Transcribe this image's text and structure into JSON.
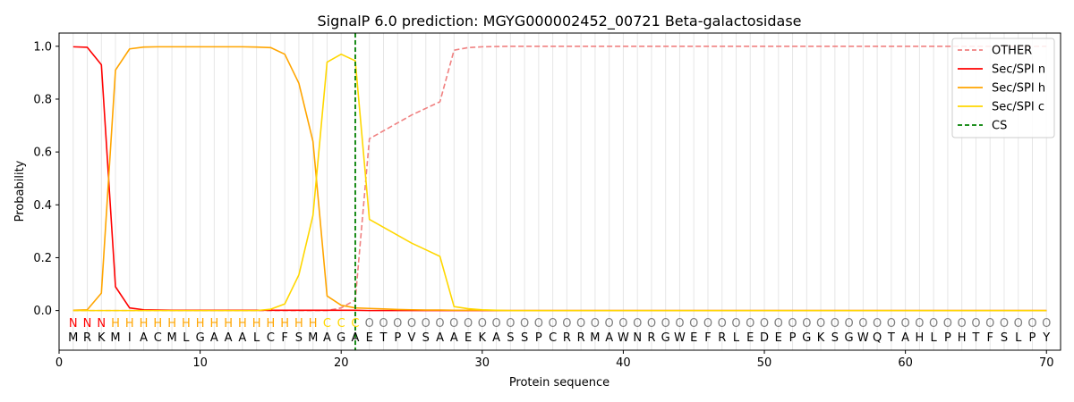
{
  "chart_data": {
    "type": "line",
    "title": "SignalP 6.0 prediction: MGYG000002452_00721 Beta-galactosidase",
    "xlabel": "Protein sequence",
    "ylabel": "Probability",
    "xlim": [
      0,
      71
    ],
    "ylim": [
      -0.15,
      1.05
    ],
    "x_ticks": [
      0,
      10,
      20,
      30,
      40,
      50,
      60,
      70
    ],
    "y_ticks": [
      0.0,
      0.2,
      0.4,
      0.6,
      0.8,
      1.0
    ],
    "grid": "vertical lines at each residue",
    "legend_position": "top-right",
    "sequence": [
      "M",
      "R",
      "K",
      "M",
      "I",
      "A",
      "C",
      "M",
      "L",
      "G",
      "A",
      "A",
      "A",
      "L",
      "C",
      "F",
      "S",
      "M",
      "A",
      "G",
      "A",
      "E",
      "T",
      "P",
      "V",
      "S",
      "A",
      "A",
      "E",
      "K",
      "A",
      "S",
      "S",
      "P",
      "C",
      "R",
      "R",
      "M",
      "A",
      "W",
      "N",
      "R",
      "G",
      "W",
      "E",
      "F",
      "R",
      "L",
      "E",
      "D",
      "E",
      "P",
      "G",
      "K",
      "S",
      "G",
      "W",
      "Q",
      "T",
      "A",
      "H",
      "L",
      "P",
      "H",
      "T",
      "F",
      "S",
      "L",
      "P",
      "Y"
    ],
    "region_labels": [
      "N",
      "N",
      "N",
      "H",
      "H",
      "H",
      "H",
      "H",
      "H",
      "H",
      "H",
      "H",
      "H",
      "H",
      "H",
      "H",
      "H",
      "H",
      "C",
      "C",
      "C",
      "O",
      "O",
      "O",
      "O",
      "O",
      "O",
      "O",
      "O",
      "O",
      "O",
      "O",
      "O",
      "O",
      "O",
      "O",
      "O",
      "O",
      "O",
      "O",
      "O",
      "O",
      "O",
      "O",
      "O",
      "O",
      "O",
      "O",
      "O",
      "O",
      "O",
      "O",
      "O",
      "O",
      "O",
      "O",
      "O",
      "O",
      "O",
      "O",
      "O",
      "O",
      "O",
      "O",
      "O",
      "O",
      "O",
      "O",
      "O",
      "O"
    ],
    "region_colors": {
      "N": "#ff0000",
      "H": "#ffa500",
      "C": "#ffd700",
      "O": "#808080"
    },
    "cleavage_site": 21,
    "series": [
      {
        "name": "OTHER",
        "color": "#f08080",
        "dash": "dashed",
        "values": [
          0,
          0,
          0,
          0,
          0,
          0,
          0,
          0,
          0,
          0,
          0,
          0,
          0,
          0,
          0,
          0,
          0,
          0,
          0,
          0.01,
          0.04,
          0.65,
          0.68,
          0.71,
          0.74,
          0.765,
          0.79,
          0.985,
          0.995,
          0.998,
          0.999,
          1,
          1,
          1,
          1,
          1,
          1,
          1,
          1,
          1,
          1,
          1,
          1,
          1,
          1,
          1,
          1,
          1,
          1,
          1,
          1,
          1,
          1,
          1,
          1,
          1,
          1,
          1,
          1,
          1,
          1,
          1,
          1,
          1,
          1,
          1,
          1,
          1,
          1,
          1
        ]
      },
      {
        "name": "Sec/SPI n",
        "color": "#ff0000",
        "dash": "solid",
        "values": [
          0.998,
          0.996,
          0.93,
          0.09,
          0.01,
          0.003,
          0.002,
          0.001,
          0.001,
          0.001,
          0.001,
          0.001,
          0.001,
          0.001,
          0.001,
          0.001,
          0.001,
          0.001,
          0.001,
          0.001,
          0.001,
          0,
          0,
          0,
          0,
          0,
          0,
          0,
          0,
          0,
          0,
          0,
          0,
          0,
          0,
          0,
          0,
          0,
          0,
          0,
          0,
          0,
          0,
          0,
          0,
          0,
          0,
          0,
          0,
          0,
          0,
          0,
          0,
          0,
          0,
          0,
          0,
          0,
          0,
          0,
          0,
          0,
          0,
          0,
          0,
          0,
          0,
          0,
          0,
          0
        ]
      },
      {
        "name": "Sec/SPI h",
        "color": "#ffa500",
        "dash": "solid",
        "values": [
          0.001,
          0.003,
          0.066,
          0.91,
          0.99,
          0.997,
          0.998,
          0.998,
          0.998,
          0.998,
          0.998,
          0.998,
          0.998,
          0.997,
          0.995,
          0.97,
          0.86,
          0.64,
          0.055,
          0.02,
          0.01,
          0.008,
          0.006,
          0.004,
          0.003,
          0.002,
          0.002,
          0.001,
          0.001,
          0.001,
          0,
          0,
          0,
          0,
          0,
          0,
          0,
          0,
          0,
          0,
          0,
          0,
          0,
          0,
          0,
          0,
          0,
          0,
          0,
          0,
          0,
          0,
          0,
          0,
          0,
          0,
          0,
          0,
          0,
          0,
          0,
          0,
          0,
          0,
          0,
          0,
          0,
          0,
          0,
          0
        ]
      },
      {
        "name": "Sec/SPI c",
        "color": "#ffd700",
        "dash": "solid",
        "values": [
          0,
          0,
          0,
          0,
          0,
          0,
          0,
          0,
          0,
          0,
          0,
          0,
          0,
          0,
          0.005,
          0.025,
          0.135,
          0.36,
          0.94,
          0.97,
          0.945,
          0.345,
          0.315,
          0.285,
          0.255,
          0.23,
          0.205,
          0.015,
          0.007,
          0.003,
          0.001,
          0,
          0,
          0,
          0,
          0,
          0,
          0,
          0,
          0,
          0,
          0,
          0,
          0,
          0,
          0,
          0,
          0,
          0,
          0,
          0,
          0,
          0,
          0,
          0,
          0,
          0,
          0,
          0,
          0,
          0,
          0,
          0,
          0,
          0,
          0,
          0,
          0,
          0,
          0
        ]
      }
    ],
    "legend": [
      "OTHER",
      "Sec/SPI n",
      "Sec/SPI h",
      "Sec/SPI c",
      "CS"
    ],
    "cs_color": "#008000"
  }
}
